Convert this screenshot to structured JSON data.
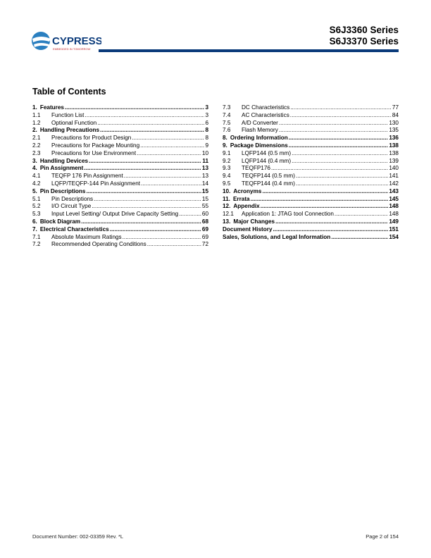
{
  "header": {
    "logo_text": "CYPRESS",
    "logo_tagline": "EMBEDDED IN TOMORROW",
    "series": [
      "S6J3360 Series",
      "S6J3370 Series"
    ],
    "rule_color": "#0a3a7a"
  },
  "toc": {
    "title": "Table of Contents",
    "left": [
      {
        "num": "1.",
        "title": "Features",
        "page": "3",
        "bold": true
      },
      {
        "num": "1.1",
        "title": "Function List",
        "page": "3"
      },
      {
        "num": "1.2",
        "title": "Optional Function",
        "page": "6"
      },
      {
        "num": "2.",
        "title": "Handling Precautions",
        "page": "8",
        "bold": true
      },
      {
        "num": "2.1",
        "title": "Precautions for Product Design",
        "page": "8"
      },
      {
        "num": "2.2",
        "title": "Precautions for Package Mounting",
        "page": "9"
      },
      {
        "num": "2.3",
        "title": "Precautions for Use Environment",
        "page": "10"
      },
      {
        "num": "3.",
        "title": "Handling Devices",
        "page": "11",
        "bold": true
      },
      {
        "num": "4.",
        "title": "Pin Assignment",
        "page": "13",
        "bold": true
      },
      {
        "num": "4.1",
        "title": "TEQFP 176 Pin Assignment",
        "page": "13"
      },
      {
        "num": "4.2",
        "title": "LQFP/TEQFP-144 Pin Assignment",
        "page": "14"
      },
      {
        "num": "5.",
        "title": "Pin Descriptions",
        "page": "15",
        "bold": true
      },
      {
        "num": "5.1",
        "title": "Pin Descriptions",
        "page": "15"
      },
      {
        "num": "5.2",
        "title": "I/O Circuit Type",
        "page": "55"
      },
      {
        "num": "5.3",
        "title": "Input Level Setting/ Output Drive Capacity Setting",
        "page": "60"
      },
      {
        "num": "6.",
        "title": "Block Diagram",
        "page": "68",
        "bold": true
      },
      {
        "num": "7.",
        "title": "Electrical Characteristics",
        "page": "69",
        "bold": true
      },
      {
        "num": "7.1",
        "title": "Absolute Maximum Ratings",
        "page": "69"
      },
      {
        "num": "7.2",
        "title": "Recommended Operating Conditions",
        "page": "72"
      }
    ],
    "right": [
      {
        "num": "7.3",
        "title": "DC Characteristics",
        "page": "77"
      },
      {
        "num": "7.4",
        "title": "AC Characteristics",
        "page": "84"
      },
      {
        "num": "7.5",
        "title": "A/D Converter",
        "page": "130"
      },
      {
        "num": "7.6",
        "title": "Flash Memory",
        "page": "135"
      },
      {
        "num": "8.",
        "title": "Ordering Information",
        "page": "136",
        "bold": true
      },
      {
        "num": "9.",
        "title": "Package Dimensions",
        "page": "138",
        "bold": true
      },
      {
        "num": "9.1",
        "title": "LQFP144 (0.5 mm)",
        "page": "138"
      },
      {
        "num": "9.2",
        "title": "LQFP144 (0.4 mm)",
        "page": "139"
      },
      {
        "num": "9.3",
        "title": "TEQFP176",
        "page": "140"
      },
      {
        "num": "9.4",
        "title": "TEQFP144 (0.5 mm)",
        "page": "141"
      },
      {
        "num": "9.5",
        "title": "TEQFP144 (0.4 mm)",
        "page": "142"
      },
      {
        "num": "10.",
        "title": "Acronyms",
        "page": "143",
        "bold": true
      },
      {
        "num": "11.",
        "title": "Errata",
        "page": "145",
        "bold": true
      },
      {
        "num": "12.",
        "title": "Appendix",
        "page": "148",
        "bold": true
      },
      {
        "num": "12.1",
        "title": "Application 1: JTAG tool Connection",
        "page": "148"
      },
      {
        "num": "13.",
        "title": "Major Changes",
        "page": "149",
        "bold": true
      },
      {
        "num": "",
        "title": "Document History",
        "page": "151",
        "bold": true
      },
      {
        "num": "",
        "title": "Sales, Solutions, and Legal Information",
        "page": "154",
        "bold": true
      }
    ]
  },
  "footer": {
    "doc_number": "Document Number: 002-03359 Rev. *L",
    "page": "Page 2 of 154"
  }
}
